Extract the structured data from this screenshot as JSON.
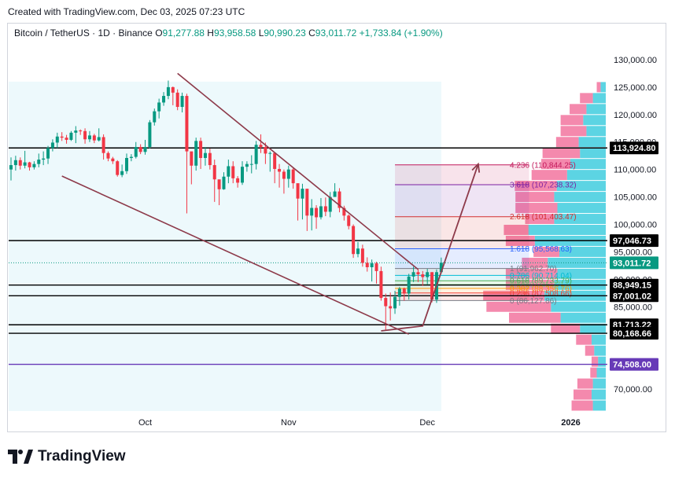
{
  "header": {
    "created_with": "Created with TradingView.com, Dec 03, 2025 07:23 UTC"
  },
  "symbol": {
    "name": "Bitcoin / TetherUS · 1D · Binance",
    "o_label": "O",
    "o": "91,277.88",
    "h_label": "H",
    "h": "93,958.58",
    "l_label": "L",
    "l": "90,990.23",
    "c_label": "C",
    "c": "93,011.72",
    "change": "+1,733.84 (+1.90%)"
  },
  "brand": {
    "name": "TradingView",
    "icon": "tradingview-logo-icon"
  },
  "colors": {
    "up": "#089981",
    "down": "#f23645",
    "channel": "#8d3a4a",
    "vp_up": "#26c6da",
    "vp_down": "#f06292",
    "level": "#000000",
    "purple_level": "#673ab7"
  },
  "chart_data": {
    "type": "candlestick",
    "title": "Bitcoin / TetherUS · 1D · Binance",
    "ylim": [
      66000,
      133000
    ],
    "y_ticks": [
      70000,
      75000,
      80000,
      85000,
      90000,
      95000,
      100000,
      105000,
      110000,
      115000,
      120000,
      125000,
      130000
    ],
    "y_tick_labels": [
      "70,000.00",
      "75,000.00",
      "80,000.00",
      "85,000.00",
      "90,000.00",
      "95,000.00",
      "100,000.00",
      "105,000.00",
      "110,000.00",
      "115,000.00",
      "120,000.00",
      "125,000.00",
      "130,000.00"
    ],
    "x_ticks": [
      {
        "label": "Oct",
        "date": "2025-10-01"
      },
      {
        "label": "Nov",
        "date": "2025-11-01"
      },
      {
        "label": "Dec",
        "date": "2025-12-01"
      },
      {
        "label": "2026",
        "date": "2026-01-01"
      }
    ],
    "start_date": "2025-09-02",
    "end_date": "2025-12-03",
    "closes": [
      110800,
      111700,
      110700,
      111300,
      110400,
      111000,
      111800,
      112000,
      113900,
      114900,
      116000,
      115800,
      115400,
      116700,
      117100,
      117000,
      115500,
      116200,
      115300,
      115900,
      113000,
      112000,
      111500,
      109000,
      109700,
      112100,
      112300,
      114100,
      113200,
      114100,
      118600,
      120600,
      122200,
      123400,
      125000,
      124000,
      121400,
      123400,
      113300,
      110700,
      115200,
      112100,
      113000,
      110800,
      108200,
      106400,
      108700,
      110600,
      108400,
      107600,
      110500,
      111000,
      111000,
      114500,
      114100,
      112900,
      113000,
      110100,
      109600,
      108300,
      110000,
      107500,
      104700,
      106500,
      101600,
      103000,
      101300,
      103300,
      102300,
      105000,
      106000,
      103000,
      101600,
      99700,
      94600,
      95600,
      93000,
      92200,
      92900,
      91500,
      86600,
      85100,
      84700,
      86800,
      88300,
      87400,
      90500,
      91300,
      90900,
      90400,
      91300,
      86300,
      91300,
      93011.72
    ],
    "highs": [
      112200,
      112500,
      112200,
      113400,
      111400,
      111500,
      112900,
      113300,
      114300,
      115500,
      116700,
      116800,
      116300,
      117000,
      117900,
      117300,
      117500,
      117000,
      116500,
      117500,
      116400,
      113300,
      112300,
      111700,
      110900,
      112900,
      112800,
      115000,
      114600,
      115400,
      119000,
      121100,
      122900,
      124100,
      126200,
      125100,
      124600,
      124000,
      123800,
      111800,
      115800,
      115800,
      114100,
      113800,
      111800,
      108000,
      109500,
      111800,
      111500,
      108800,
      111500,
      111500,
      112600,
      115200,
      116400,
      114900,
      113300,
      111400,
      111000,
      110000,
      110700,
      110300,
      107200,
      107400,
      106000,
      104600,
      103500,
      104800,
      104900,
      105900,
      107500,
      106600,
      103400,
      101800,
      100000,
      96800,
      96300,
      94000,
      93600,
      93200,
      92300,
      87400,
      87600,
      87900,
      88600,
      88500,
      91000,
      92300,
      91900,
      91500,
      91900,
      91300,
      91800,
      93958.58
    ],
    "lows": [
      108000,
      109800,
      110000,
      110200,
      109800,
      110000,
      110400,
      110800,
      111000,
      113300,
      113900,
      115200,
      114700,
      115200,
      114800,
      116300,
      114700,
      115000,
      114800,
      115100,
      111800,
      111500,
      111000,
      108700,
      108600,
      109200,
      111500,
      112000,
      112800,
      112700,
      113800,
      118000,
      119300,
      121600,
      122800,
      121700,
      120800,
      120400,
      102000,
      107300,
      109800,
      110100,
      110700,
      110000,
      104100,
      103500,
      106300,
      107500,
      107500,
      106700,
      107200,
      109600,
      109300,
      110000,
      113000,
      111000,
      109600,
      107500,
      106700,
      105600,
      106700,
      106500,
      100700,
      100900,
      98800,
      98900,
      99200,
      100900,
      101500,
      101300,
      105200,
      102200,
      100700,
      99100,
      93900,
      94000,
      92300,
      91400,
      89600,
      89200,
      86100,
      80600,
      82500,
      83700,
      85200,
      86100,
      86300,
      89500,
      89500,
      88800,
      89100,
      85800,
      85700,
      90990.23
    ],
    "opens_note": "Each candle opens at the prior candle's close; the first opens at 110,000",
    "levels": [
      {
        "label": "113,924.80",
        "value": 113924.8,
        "color": "#000000"
      },
      {
        "label": "97,046.73",
        "value": 97046.73,
        "color": "#000000"
      },
      {
        "label": "88,949.15",
        "value": 88949.15,
        "color": "#000000"
      },
      {
        "label": "87,001.02",
        "value": 87001.02,
        "color": "#000000"
      },
      {
        "label": "81,713.22",
        "value": 81713.22,
        "color": "#000000"
      },
      {
        "label": "80,168.66",
        "value": 80168.66,
        "color": "#000000"
      },
      {
        "label": "74,508.00",
        "value": 74508.0,
        "color": "#673ab7"
      }
    ],
    "last_price": {
      "label": "93,011.72",
      "value": 93011.72,
      "color": "#089981"
    },
    "fibonacci": {
      "date_start": "2025-11-24",
      "date_end": "2025-12-23",
      "levels": [
        {
          "ratio": "4.236",
          "label": "4.236 (110,844.25)",
          "value": 110844.25,
          "color": "#c2185b"
        },
        {
          "ratio": "3.618",
          "label": "3.618 (107,238.32)",
          "value": 107238.32,
          "color": "#7b1fa2"
        },
        {
          "ratio": "2.618",
          "label": "2.618 (101,403.47)",
          "value": 101403.47,
          "color": "#d32f2f"
        },
        {
          "ratio": "1.618",
          "label": "1.618 (95,568.63)",
          "value": 95568.63,
          "color": "#2962ff"
        },
        {
          "ratio": "1",
          "label": "1 (91,962.70)",
          "value": 91962.7,
          "color": "#787b86"
        },
        {
          "ratio": "0.786",
          "label": "0.786 (90,714.04)",
          "value": 90714.04,
          "color": "#00bcd4"
        },
        {
          "ratio": "0.618",
          "label": "0.618 (89,733.79)",
          "value": 89733.79,
          "color": "#4caf50"
        },
        {
          "ratio": "0.5",
          "label": "0.5 (89,045.27)",
          "value": 89045.27,
          "color": "#81c784"
        },
        {
          "ratio": "0.382",
          "label": "0.382 (88,356.76)",
          "value": 88356.76,
          "color": "#ff9800"
        },
        {
          "ratio": "0.236",
          "label": "0.236 (87,508.66)",
          "value": 87508.66,
          "color": "#f44336"
        },
        {
          "ratio": "0",
          "label": "0 (86,127.86)",
          "value": 86127.86,
          "color": "#787b86"
        }
      ]
    },
    "channel": {
      "upper": [
        {
          "date": "2025-10-08",
          "value": 127500
        },
        {
          "date": "2025-11-29",
          "value": 91800
        }
      ],
      "lower": [
        {
          "date": "2025-09-13",
          "value": 108800
        },
        {
          "date": "2025-11-27",
          "value": 80000
        }
      ]
    },
    "projection": [
      {
        "date": "2025-11-21",
        "value": 80600
      },
      {
        "date": "2025-11-30",
        "value": 81500
      },
      {
        "date": "2025-12-12",
        "value": 111000
      }
    ],
    "highlight_range": {
      "date_start": "2025-09-02",
      "date_end": "2025-12-03",
      "value_top": 126000,
      "value_bottom": 66000
    },
    "volume_profile": [
      {
        "price": 67000,
        "up": 20,
        "down": 33
      },
      {
        "price": 69000,
        "up": 22,
        "down": 28
      },
      {
        "price": 71000,
        "up": 20,
        "down": 24
      },
      {
        "price": 73000,
        "up": 14,
        "down": 10
      },
      {
        "price": 75000,
        "up": 12,
        "down": 10
      },
      {
        "price": 77000,
        "up": 18,
        "down": 14
      },
      {
        "price": 79000,
        "up": 22,
        "down": 24
      },
      {
        "price": 81000,
        "up": 40,
        "down": 45
      },
      {
        "price": 83000,
        "up": 70,
        "down": 80
      },
      {
        "price": 85000,
        "up": 85,
        "down": 100
      },
      {
        "price": 87000,
        "up": 95,
        "down": 95
      },
      {
        "price": 89000,
        "up": 80,
        "down": 75
      },
      {
        "price": 91000,
        "up": 75,
        "down": 80
      },
      {
        "price": 93000,
        "up": 90,
        "down": 40
      },
      {
        "price": 95000,
        "up": 72,
        "down": 40
      },
      {
        "price": 97000,
        "up": 110,
        "down": 45
      },
      {
        "price": 99000,
        "up": 120,
        "down": 38
      },
      {
        "price": 101000,
        "up": 80,
        "down": 45
      },
      {
        "price": 103000,
        "up": 75,
        "down": 65
      },
      {
        "price": 105000,
        "up": 80,
        "down": 60
      },
      {
        "price": 107000,
        "up": 76,
        "down": 65
      },
      {
        "price": 109000,
        "up": 60,
        "down": 55
      },
      {
        "price": 111000,
        "up": 55,
        "down": 45
      },
      {
        "price": 113000,
        "up": 40,
        "down": 58
      },
      {
        "price": 115000,
        "up": 42,
        "down": 35
      },
      {
        "price": 117000,
        "up": 30,
        "down": 40
      },
      {
        "price": 119000,
        "up": 35,
        "down": 35
      },
      {
        "price": 121000,
        "up": 30,
        "down": 26
      },
      {
        "price": 123000,
        "up": 20,
        "down": 20
      },
      {
        "price": 125000,
        "up": 8,
        "down": 6
      }
    ]
  }
}
